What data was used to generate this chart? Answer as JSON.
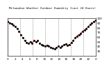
{
  "title": "Milwaukee Weather Outdoor Humidity (Last 24 Hours)",
  "y_values": [
    93,
    90,
    88,
    85,
    82,
    78,
    72,
    65,
    58,
    52,
    48,
    46,
    50,
    47,
    53,
    49,
    52,
    47,
    44,
    42,
    40,
    42,
    40,
    38,
    36,
    35,
    37,
    40,
    38,
    40,
    43,
    45,
    42,
    44,
    48,
    52,
    58,
    62,
    65,
    68,
    72,
    75,
    78,
    82,
    86,
    90,
    93,
    95
  ],
  "ylim": [
    20,
    100
  ],
  "ytick_vals": [
    30,
    40,
    50,
    60,
    70,
    80,
    90,
    100
  ],
  "ytick_labels": [
    "30",
    "40",
    "50",
    "60",
    "70",
    "80",
    "90",
    "100"
  ],
  "line_color": "#dd0000",
  "marker_color": "#000000",
  "bg_color": "#ffffff",
  "plot_bg_color": "#ffffff",
  "grid_color": "#888888",
  "n_vgrid": 7,
  "title_fontsize": 3.0,
  "tick_fontsize": 3.0
}
